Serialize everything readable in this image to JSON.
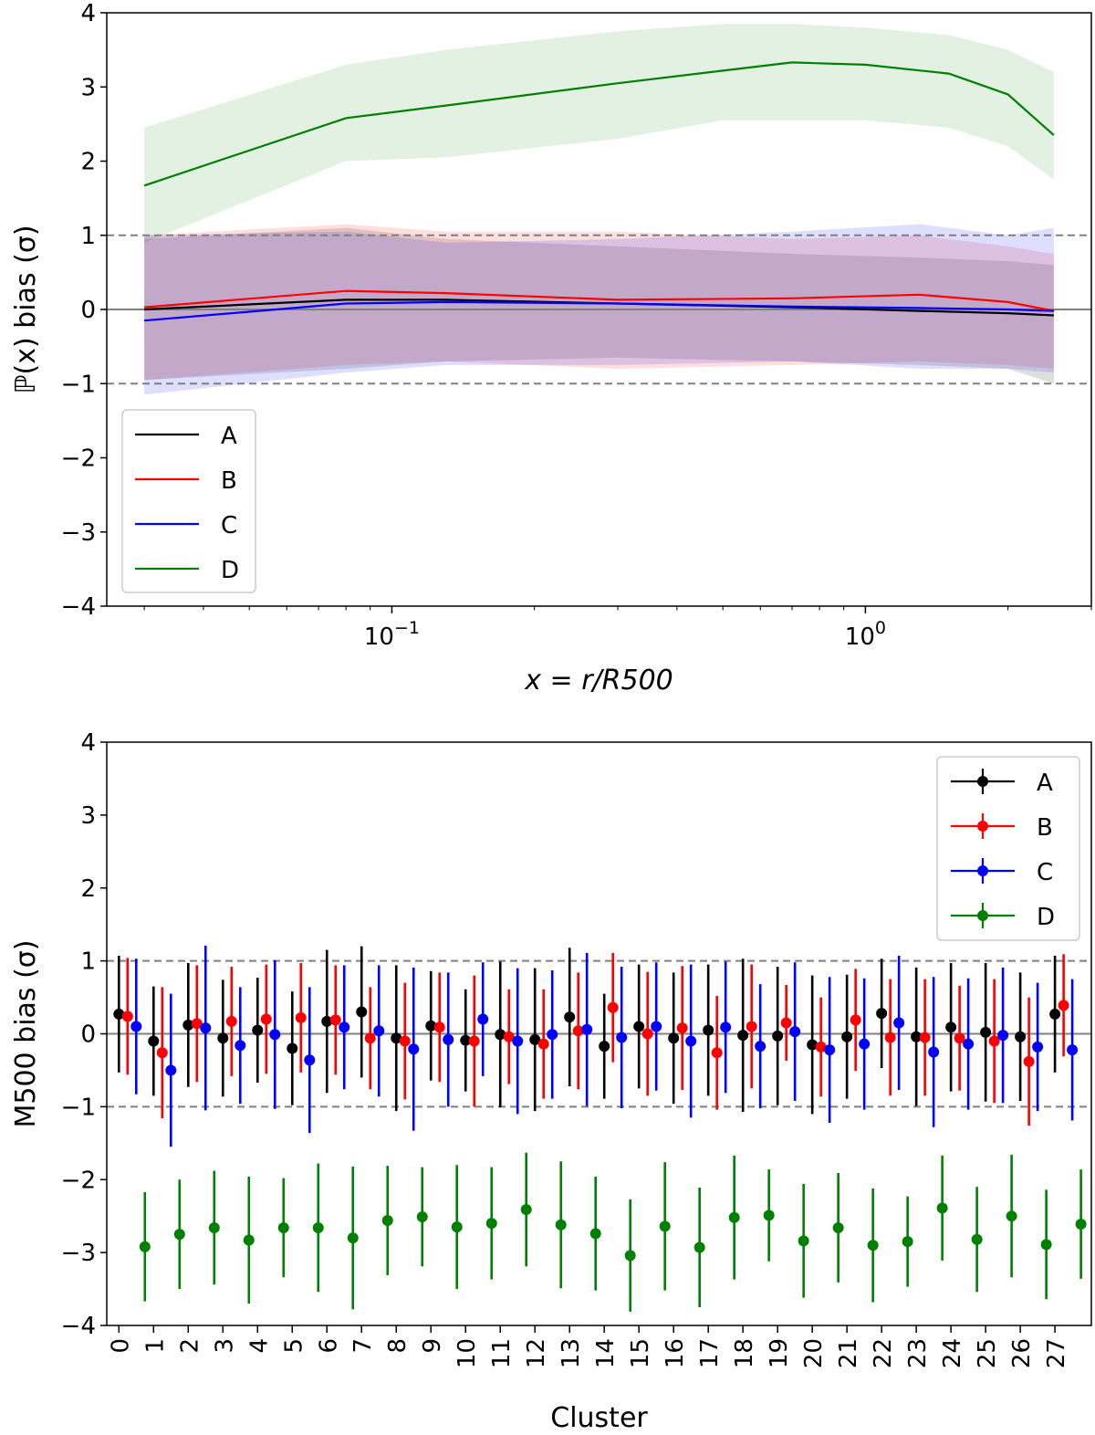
{
  "colors": {
    "A": "#000000",
    "B": "#ff0000",
    "C": "#0000ff",
    "D": "#008000",
    "ref": "#808080"
  },
  "chart_data": [
    {
      "type": "line",
      "xscale": "log",
      "xlim": [
        0.025,
        3.0
      ],
      "ylim": [
        -4,
        4
      ],
      "xlabel": "x = r/R500",
      "ylabel": "ℙ(x) bias (σ)",
      "yticks": [
        "4",
        "3",
        "2",
        "1",
        "0",
        "−1",
        "−2",
        "−3",
        "−4"
      ],
      "xticks": [
        {
          "value": 0.1,
          "base": "10",
          "exp": "−1"
        },
        {
          "value": 1.0,
          "base": "10",
          "exp": "0"
        }
      ],
      "reference_lines": [
        {
          "y": 1,
          "style": "dashed"
        },
        {
          "y": -1,
          "style": "dashed"
        },
        {
          "y": 0,
          "style": "solid"
        }
      ],
      "legend_position": "lower-left",
      "series": [
        {
          "name": "A",
          "x": [
            0.03,
            0.08,
            0.13,
            0.3,
            0.7,
            1.3,
            2.0,
            2.5
          ],
          "y": [
            0.0,
            0.13,
            0.13,
            0.08,
            0.03,
            -0.02,
            -0.05,
            -0.08
          ],
          "lower": [
            -0.95,
            -0.8,
            -0.7,
            -0.65,
            -0.7,
            -0.75,
            -0.8,
            -1.0
          ],
          "upper": [
            0.95,
            1.1,
            0.95,
            0.85,
            0.75,
            0.7,
            0.65,
            0.6
          ]
        },
        {
          "name": "B",
          "x": [
            0.03,
            0.08,
            0.13,
            0.3,
            0.7,
            1.3,
            2.0,
            2.5
          ],
          "y": [
            0.03,
            0.25,
            0.22,
            0.13,
            0.15,
            0.2,
            0.1,
            -0.02
          ],
          "lower": [
            -0.95,
            -0.75,
            -0.7,
            -0.8,
            -0.75,
            -0.7,
            -0.75,
            -0.8
          ],
          "upper": [
            1.0,
            1.15,
            1.05,
            1.05,
            0.95,
            1.0,
            0.85,
            0.75
          ]
        },
        {
          "name": "C",
          "x": [
            0.03,
            0.08,
            0.13,
            0.3,
            0.7,
            1.3,
            2.0,
            2.5
          ],
          "y": [
            -0.15,
            0.08,
            0.1,
            0.08,
            0.04,
            0.02,
            0.0,
            -0.02
          ],
          "lower": [
            -1.15,
            -0.85,
            -0.75,
            -0.75,
            -0.7,
            -0.8,
            -0.8,
            -0.85
          ],
          "upper": [
            1.0,
            1.05,
            0.9,
            0.95,
            1.05,
            1.15,
            1.0,
            1.1
          ]
        },
        {
          "name": "D",
          "x": [
            0.03,
            0.08,
            0.13,
            0.3,
            0.5,
            0.7,
            1.0,
            1.5,
            2.0,
            2.5
          ],
          "y": [
            1.67,
            2.58,
            2.75,
            3.05,
            3.22,
            3.33,
            3.3,
            3.18,
            2.9,
            2.35
          ],
          "lower": [
            0.9,
            2.0,
            2.05,
            2.3,
            2.55,
            2.55,
            2.55,
            2.45,
            2.2,
            1.75
          ],
          "upper": [
            2.45,
            3.3,
            3.5,
            3.75,
            3.85,
            3.85,
            3.8,
            3.7,
            3.5,
            3.2
          ]
        }
      ]
    },
    {
      "type": "scatter",
      "xlabel": "Cluster",
      "ylabel": "M500 bias (σ)",
      "ylim": [
        -4,
        4
      ],
      "yticks": [
        "4",
        "3",
        "2",
        "1",
        "0",
        "−1",
        "−2",
        "−3",
        "−4"
      ],
      "categories": [
        "0",
        "1",
        "2",
        "3",
        "4",
        "5",
        "6",
        "7",
        "8",
        "9",
        "10",
        "11",
        "12",
        "13",
        "14",
        "15",
        "16",
        "17",
        "18",
        "19",
        "20",
        "21",
        "22",
        "23",
        "24",
        "25",
        "26",
        "27"
      ],
      "reference_lines": [
        {
          "y": 1,
          "style": "dashed"
        },
        {
          "y": -1,
          "style": "dashed"
        },
        {
          "y": 0,
          "style": "solid"
        }
      ],
      "legend_position": "upper-right",
      "offsets": {
        "A": 0.0,
        "B": 0.25,
        "C": 0.5,
        "D": 0.75
      },
      "series": [
        {
          "name": "A",
          "values": [
            0.27,
            -0.1,
            0.12,
            -0.06,
            0.05,
            -0.2,
            0.17,
            0.3,
            -0.06,
            0.11,
            -0.09,
            -0.01,
            -0.08,
            0.23,
            -0.17,
            0.1,
            -0.06,
            0.05,
            -0.02,
            -0.03,
            -0.15,
            -0.04,
            0.28,
            -0.04,
            0.09,
            0.02,
            -0.04,
            0.27
          ],
          "errors": [
            0.8,
            0.75,
            0.85,
            0.8,
            0.72,
            0.78,
            0.98,
            0.9,
            1.0,
            0.75,
            0.7,
            1.0,
            0.98,
            0.95,
            0.72,
            0.85,
            0.9,
            0.9,
            1.05,
            0.95,
            0.95,
            0.85,
            0.75,
            0.95,
            0.88,
            0.95,
            0.88,
            0.8
          ]
        },
        {
          "name": "B",
          "values": [
            0.24,
            -0.26,
            0.14,
            0.17,
            0.2,
            0.22,
            0.19,
            -0.06,
            -0.1,
            0.09,
            -0.1,
            -0.04,
            -0.14,
            0.04,
            0.36,
            0.0,
            0.08,
            -0.26,
            0.1,
            0.15,
            -0.18,
            0.19,
            -0.05,
            -0.05,
            -0.06,
            -0.1,
            -0.38,
            0.39
          ],
          "errors": [
            0.8,
            0.9,
            0.8,
            0.75,
            0.75,
            0.75,
            0.75,
            0.7,
            0.8,
            0.75,
            0.9,
            0.65,
            0.75,
            0.8,
            0.75,
            0.85,
            0.85,
            0.78,
            0.85,
            0.52,
            0.68,
            0.7,
            0.8,
            0.8,
            0.72,
            0.85,
            0.88,
            0.7
          ]
        },
        {
          "name": "C",
          "values": [
            0.1,
            -0.5,
            0.08,
            -0.16,
            -0.01,
            -0.36,
            0.09,
            0.04,
            -0.21,
            -0.08,
            0.2,
            -0.1,
            -0.01,
            0.06,
            -0.05,
            0.1,
            -0.1,
            0.09,
            -0.17,
            0.03,
            -0.22,
            -0.14,
            0.15,
            -0.25,
            -0.14,
            -0.02,
            -0.18,
            -0.22
          ],
          "errors": [
            0.93,
            1.05,
            1.13,
            0.8,
            1.02,
            1.0,
            0.85,
            0.9,
            1.12,
            0.92,
            0.78,
            1.0,
            0.88,
            1.05,
            0.97,
            0.88,
            1.05,
            0.9,
            0.85,
            0.95,
            1.0,
            0.9,
            0.92,
            1.03,
            0.9,
            0.93,
            0.88,
            0.97
          ]
        },
        {
          "name": "D",
          "values": [
            -2.92,
            -2.75,
            -2.66,
            -2.83,
            -2.66,
            -2.66,
            -2.8,
            -2.56,
            -2.51,
            -2.65,
            -2.6,
            -2.41,
            -2.62,
            -2.74,
            -3.04,
            -2.64,
            -2.93,
            -2.52,
            -2.49,
            -2.84,
            -2.66,
            -2.9,
            -2.85,
            -2.39,
            -2.82,
            -2.5,
            -2.89,
            -2.61
          ],
          "errors": [
            0.75,
            0.75,
            0.78,
            0.87,
            0.68,
            0.88,
            0.98,
            0.75,
            0.68,
            0.85,
            0.77,
            0.78,
            0.87,
            0.78,
            0.77,
            0.88,
            0.82,
            0.85,
            0.63,
            0.78,
            0.75,
            0.78,
            0.62,
            0.72,
            0.72,
            0.84,
            0.75,
            0.75
          ]
        }
      ]
    }
  ]
}
